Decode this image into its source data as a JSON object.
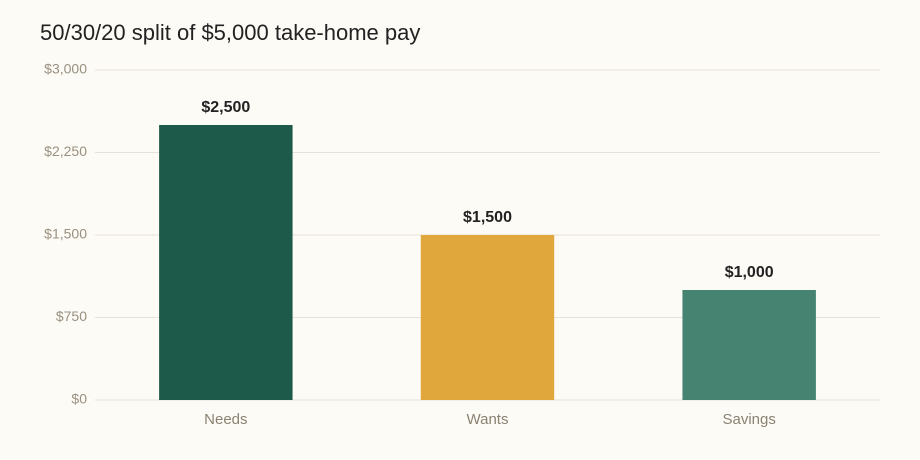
{
  "chart_data": {
    "type": "bar",
    "title": "50/30/20 split of $5,000 take-home pay",
    "categories": [
      "Needs",
      "Wants",
      "Savings"
    ],
    "values": [
      2500,
      1500,
      1000
    ],
    "value_labels": [
      "$2,500",
      "$1,500",
      "$1,000"
    ],
    "colors": [
      "#1e5a4a",
      "#e0a83c",
      "#478371"
    ],
    "ylim": [
      0,
      3000
    ],
    "yticks": [
      {
        "value": 0,
        "label": "$0"
      },
      {
        "value": 750,
        "label": "$750"
      },
      {
        "value": 1500,
        "label": "$1,500"
      },
      {
        "value": 2250,
        "label": "$2,250"
      },
      {
        "value": 3000,
        "label": "$3,000"
      }
    ],
    "grid": true
  }
}
